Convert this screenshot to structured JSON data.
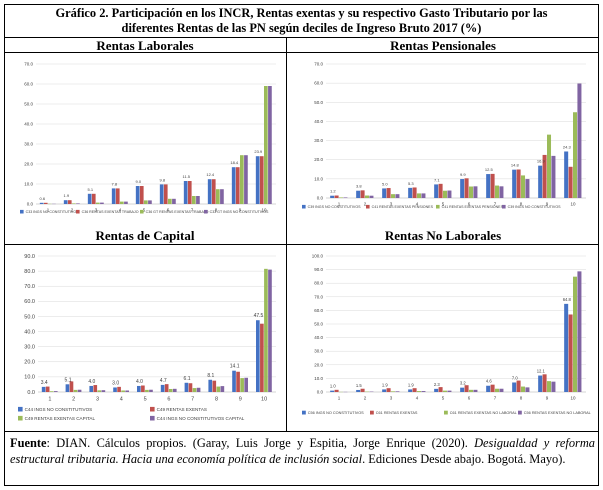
{
  "title": {
    "line1": "Gráfico 2. Participación en los INCR, Rentas exentas y su respectivo Gasto Tributario por las",
    "line2": "diferentes Rentas de las PN según deciles de Ingreso Bruto 2017 (%)"
  },
  "panels": [
    {
      "title": "Rentas Laborales"
    },
    {
      "title": "Rentas Pensionales"
    },
    {
      "title": "Rentas de Capital"
    },
    {
      "title": "Rentas No Laborales"
    }
  ],
  "source": {
    "label": "Fuente",
    "text1": ": DIAN. Cálculos propios. (Garay, Luis Jorge y Espitia, Jorge Enrique (2020). ",
    "italic": "Desigualdad y reforma estructural tributaria. Hacia una economía política de inclusión social",
    "text2": ". Ediciones Desde abajo. Bogotá. Mayo)."
  },
  "colors": {
    "blue": "#4472C4",
    "red": "#C0504D",
    "green": "#9BBB59",
    "purple": "#8064A2"
  },
  "chart_data": [
    {
      "type": "bar",
      "title": "Rentas Laborales",
      "categories": [
        "1",
        "2",
        "3",
        "4",
        "5",
        "6",
        "7",
        "8",
        "9",
        "10"
      ],
      "ylim": [
        0,
        70
      ],
      "yticks": [
        "0.0",
        "10.0",
        "20.0",
        "30.0",
        "40.0",
        "50.0",
        "60.0",
        "70.0"
      ],
      "legend_position": "bottom",
      "data_labels": [
        "0.6",
        "1.9",
        "5.1",
        "7.8",
        "9.0",
        "9.8",
        "11.5",
        "12.4",
        "18.4",
        "23.9"
      ],
      "series": [
        {
          "name": "C33 INGS NO CONSTITUTIVOS",
          "color": "#4472C4",
          "values": [
            0.6,
            1.9,
            5.1,
            7.8,
            9.0,
            9.8,
            11.5,
            12.4,
            18.4,
            23.9
          ]
        },
        {
          "name": "C36 RENTAS EXENTAS TRABAJO",
          "color": "#C0504D",
          "values": [
            0.6,
            1.9,
            5.1,
            7.8,
            9.0,
            9.8,
            11.5,
            12.4,
            18.4,
            23.9
          ]
        },
        {
          "name": "C36 GT RENTAS EXENTAS TRABAJO",
          "color": "#9BBB59",
          "values": [
            0.1,
            0.3,
            0.7,
            1.2,
            1.8,
            2.6,
            4.0,
            7.4,
            24.4,
            59.0
          ]
        },
        {
          "name": "C33 GT INGS NO CONSTITUTIVOS",
          "color": "#8064A2",
          "values": [
            0.1,
            0.3,
            0.7,
            1.2,
            1.8,
            2.6,
            4.0,
            7.4,
            24.4,
            59.0
          ]
        }
      ]
    },
    {
      "type": "bar",
      "title": "Rentas Pensionales",
      "categories": [
        "1",
        "2",
        "3",
        "4",
        "5",
        "6",
        "7",
        "8",
        "9",
        "10"
      ],
      "ylim": [
        0,
        70
      ],
      "yticks": [
        "0.0",
        "10.0",
        "20.0",
        "30.0",
        "40.0",
        "50.0",
        "60.0",
        "70.0"
      ],
      "legend_position": "bottom",
      "data_labels": [
        "1.2",
        "3.8",
        "5.0",
        "5.3",
        "7.1",
        "9.9",
        "12.5",
        "14.8",
        "16.9",
        "24.3"
      ],
      "series": [
        {
          "name": "C39 INGS NO CONSTITUTIVOS",
          "color": "#4472C4",
          "values": [
            1.2,
            3.8,
            5.0,
            5.3,
            7.1,
            9.9,
            12.5,
            14.8,
            16.9,
            24.3
          ]
        },
        {
          "name": "C41 RENTAS EXENTAS PENSIONES",
          "color": "#C0504D",
          "values": [
            1.3,
            4.0,
            5.2,
            5.5,
            7.4,
            10.3,
            12.6,
            14.9,
            22.5,
            16.3
          ]
        },
        {
          "name": "C41 RENTAS EXENTAS PENSIONES",
          "color": "#9BBB59",
          "values": [
            0.3,
            1.3,
            2.0,
            2.4,
            3.8,
            6.0,
            6.5,
            11.8,
            33.1,
            44.8
          ]
        },
        {
          "name": "C39 INGS NO CONSTITUTIVOS",
          "color": "#8064A2",
          "values": [
            0.3,
            1.2,
            2.0,
            2.4,
            3.9,
            6.1,
            6.1,
            9.9,
            22.0,
            59.8
          ]
        }
      ]
    },
    {
      "type": "bar",
      "title": "Rentas de Capital",
      "categories": [
        "1",
        "2",
        "3",
        "4",
        "5",
        "6",
        "7",
        "8",
        "9",
        "10"
      ],
      "ylim": [
        0,
        90
      ],
      "yticks": [
        "0.0",
        "10.0",
        "20.0",
        "30.0",
        "40.0",
        "50.0",
        "60.0",
        "70.0",
        "80.0",
        "90.0"
      ],
      "legend_position": "bottom",
      "data_labels": [
        "3.4",
        "5.1",
        "4.0",
        "3.0",
        "4.0",
        "4.7",
        "6.1",
        "8.1",
        "14.1",
        "47.5"
      ],
      "series": [
        {
          "name": "C44 INGS NO CONSTITUTIVOS",
          "color": "#4472C4",
          "values": [
            3.4,
            5.1,
            4.0,
            3.0,
            4.0,
            4.7,
            6.1,
            8.1,
            14.1,
            47.5
          ]
        },
        {
          "name": "C49 RENTAS EXENTAS",
          "color": "#C0504D",
          "values": [
            3.6,
            7.0,
            4.6,
            3.4,
            4.3,
            5.2,
            5.8,
            7.5,
            13.4,
            45.2
          ]
        },
        {
          "name": "C49 RENTAS EXENTAS CAPITAL",
          "color": "#9BBB59",
          "values": [
            0.5,
            1.4,
            1.1,
            1.0,
            1.4,
            2.0,
            2.6,
            3.6,
            9.2,
            81.5
          ]
        },
        {
          "name": "C44 INGS NO CONSTITUTIVOS CAPITAL",
          "color": "#8064A2",
          "values": [
            0.6,
            1.5,
            1.2,
            1.0,
            1.5,
            2.1,
            2.8,
            3.9,
            9.4,
            81.0
          ]
        }
      ]
    },
    {
      "type": "bar",
      "title": "Rentas No Laborales",
      "categories": [
        "1",
        "2",
        "3",
        "4",
        "5",
        "6",
        "7",
        "8",
        "9",
        "10"
      ],
      "ylim": [
        0,
        100
      ],
      "yticks": [
        "0.0",
        "10.0",
        "20.0",
        "30.0",
        "40.0",
        "50.0",
        "60.0",
        "70.0",
        "80.0",
        "90.0",
        "100.0"
      ],
      "legend_position": "bottom",
      "data_labels": [
        "1.0",
        "1.5",
        "1.9",
        "1.9",
        "2.3",
        "3.2",
        "4.6",
        "7.0",
        "12.1",
        "64.8"
      ],
      "series": [
        {
          "name": "C56 INGS NO CONSTITUTIVOS",
          "color": "#4472C4",
          "values": [
            1.0,
            1.5,
            1.9,
            1.9,
            2.3,
            3.2,
            4.6,
            7.0,
            12.1,
            64.8
          ]
        },
        {
          "name": "C61 RENTAS EXENTAS",
          "color": "#C0504D",
          "values": [
            1.6,
            2.4,
            2.8,
            2.8,
            3.6,
            5.0,
            5.4,
            8.4,
            13.0,
            57.0
          ]
        },
        {
          "name": "C61 RENTAS EXENTAS NO LABORAL",
          "color": "#9BBB59",
          "values": [
            0.1,
            0.3,
            0.5,
            0.7,
            1.0,
            1.6,
            2.4,
            4.0,
            8.0,
            84.8
          ]
        },
        {
          "name": "C56 RENTAS EXENTAS NO LABORAL",
          "color": "#8064A2",
          "values": [
            0.1,
            0.3,
            0.5,
            0.7,
            1.0,
            1.6,
            2.4,
            3.4,
            7.6,
            88.7
          ]
        }
      ]
    }
  ]
}
